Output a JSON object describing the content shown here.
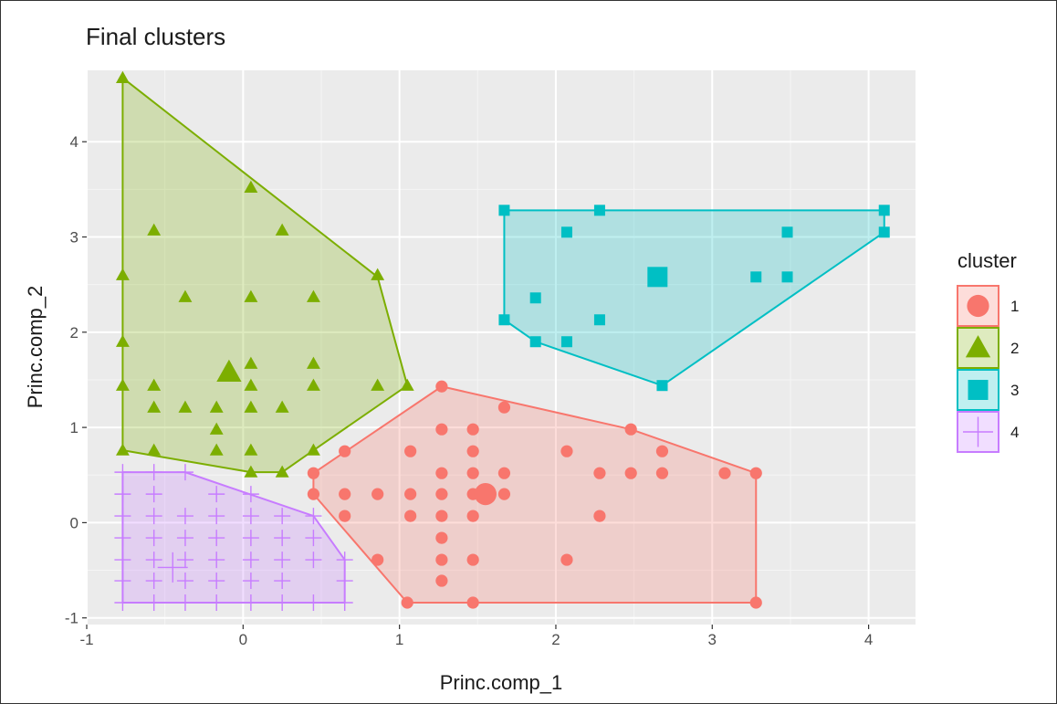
{
  "chart_data": {
    "type": "scatter",
    "title": "Final clusters",
    "xlabel": "Princ.comp_1",
    "ylabel": "Princ.comp_2",
    "xlim": [
      -1,
      4.3
    ],
    "ylim": [
      -1.07,
      4.75
    ],
    "x_ticks": [
      -1,
      0,
      1,
      2,
      3,
      4
    ],
    "y_ticks": [
      -1,
      0,
      1,
      2,
      3,
      4
    ],
    "x_tick_labels": [
      "-1",
      "0",
      "1",
      "2",
      "3",
      "4"
    ],
    "y_tick_labels": [
      "-1",
      "0",
      "1",
      "2",
      "3",
      "4"
    ],
    "grid": true,
    "panel_background": "#ebebeb",
    "legend": {
      "title": "cluster",
      "position": "right"
    },
    "series": [
      {
        "name": "1",
        "shape": "circle",
        "color": "#f8766d",
        "center": [
          1.55,
          0.3
        ],
        "hull": [
          [
            0.45,
            0.52
          ],
          [
            0.45,
            0.3
          ],
          [
            1.05,
            -0.84
          ],
          [
            3.28,
            -0.84
          ],
          [
            3.28,
            0.52
          ],
          [
            2.48,
            0.98
          ],
          [
            1.27,
            1.43
          ]
        ],
        "points": [
          [
            1.27,
            1.43
          ],
          [
            1.67,
            1.21
          ],
          [
            1.27,
            0.98
          ],
          [
            1.47,
            0.98
          ],
          [
            2.48,
            0.98
          ],
          [
            0.65,
            0.75
          ],
          [
            1.07,
            0.75
          ],
          [
            1.47,
            0.75
          ],
          [
            2.07,
            0.75
          ],
          [
            2.68,
            0.75
          ],
          [
            0.45,
            0.52
          ],
          [
            1.27,
            0.52
          ],
          [
            1.47,
            0.52
          ],
          [
            1.67,
            0.52
          ],
          [
            2.28,
            0.52
          ],
          [
            2.48,
            0.52
          ],
          [
            2.68,
            0.52
          ],
          [
            3.08,
            0.52
          ],
          [
            3.28,
            0.52
          ],
          [
            0.45,
            0.3
          ],
          [
            0.65,
            0.3
          ],
          [
            0.86,
            0.3
          ],
          [
            1.07,
            0.3
          ],
          [
            1.27,
            0.3
          ],
          [
            1.47,
            0.3
          ],
          [
            1.67,
            0.3
          ],
          [
            0.65,
            0.07
          ],
          [
            1.07,
            0.07
          ],
          [
            1.27,
            0.07
          ],
          [
            1.47,
            0.07
          ],
          [
            2.28,
            0.07
          ],
          [
            1.27,
            -0.16
          ],
          [
            0.86,
            -0.39
          ],
          [
            1.27,
            -0.39
          ],
          [
            1.47,
            -0.39
          ],
          [
            2.07,
            -0.39
          ],
          [
            1.27,
            -0.61
          ],
          [
            1.05,
            -0.84
          ],
          [
            1.47,
            -0.84
          ],
          [
            3.28,
            -0.84
          ]
        ]
      },
      {
        "name": "2",
        "shape": "triangle",
        "color": "#7cae00",
        "center": [
          -0.09,
          1.58
        ],
        "hull": [
          [
            -0.77,
            4.67
          ],
          [
            0.86,
            2.58
          ],
          [
            1.05,
            1.44
          ],
          [
            0.45,
            0.76
          ],
          [
            0.25,
            0.53
          ],
          [
            0.05,
            0.53
          ],
          [
            -0.77,
            0.76
          ]
        ],
        "points": [
          [
            -0.77,
            4.67
          ],
          [
            0.05,
            3.52
          ],
          [
            -0.57,
            3.07
          ],
          [
            0.25,
            3.07
          ],
          [
            -0.77,
            2.6
          ],
          [
            0.86,
            2.6
          ],
          [
            -0.37,
            2.37
          ],
          [
            0.05,
            2.37
          ],
          [
            0.45,
            2.37
          ],
          [
            -0.77,
            1.9
          ],
          [
            0.05,
            1.67
          ],
          [
            0.45,
            1.67
          ],
          [
            -0.77,
            1.44
          ],
          [
            -0.57,
            1.44
          ],
          [
            0.05,
            1.44
          ],
          [
            0.45,
            1.44
          ],
          [
            0.86,
            1.44
          ],
          [
            1.05,
            1.44
          ],
          [
            -0.57,
            1.21
          ],
          [
            -0.37,
            1.21
          ],
          [
            -0.17,
            1.21
          ],
          [
            0.05,
            1.21
          ],
          [
            0.25,
            1.21
          ],
          [
            -0.17,
            0.98
          ],
          [
            -0.77,
            0.76
          ],
          [
            -0.57,
            0.76
          ],
          [
            -0.17,
            0.76
          ],
          [
            0.05,
            0.76
          ],
          [
            0.45,
            0.76
          ],
          [
            0.05,
            0.53
          ],
          [
            0.25,
            0.53
          ]
        ]
      },
      {
        "name": "3",
        "shape": "square",
        "color": "#00bfc4",
        "center": [
          2.65,
          2.58
        ],
        "hull": [
          [
            1.67,
            3.28
          ],
          [
            4.1,
            3.28
          ],
          [
            4.1,
            3.05
          ],
          [
            2.68,
            1.44
          ],
          [
            1.87,
            1.9
          ],
          [
            1.67,
            2.13
          ]
        ],
        "points": [
          [
            1.67,
            3.28
          ],
          [
            2.28,
            3.28
          ],
          [
            4.1,
            3.28
          ],
          [
            2.07,
            3.05
          ],
          [
            3.48,
            3.05
          ],
          [
            4.1,
            3.05
          ],
          [
            3.28,
            2.58
          ],
          [
            3.48,
            2.58
          ],
          [
            1.87,
            2.36
          ],
          [
            1.67,
            2.13
          ],
          [
            2.28,
            2.13
          ],
          [
            1.87,
            1.9
          ],
          [
            2.07,
            1.9
          ],
          [
            2.68,
            1.44
          ]
        ]
      },
      {
        "name": "4",
        "shape": "cross",
        "color": "#c77cff",
        "center": [
          -0.45,
          -0.47
        ],
        "hull": [
          [
            -0.77,
            0.53
          ],
          [
            -0.37,
            0.53
          ],
          [
            0.45,
            0.07
          ],
          [
            0.65,
            -0.39
          ],
          [
            0.65,
            -0.84
          ],
          [
            -0.77,
            -0.84
          ]
        ],
        "points": [
          [
            -0.77,
            0.53
          ],
          [
            -0.57,
            0.53
          ],
          [
            -0.37,
            0.53
          ],
          [
            -0.77,
            0.3
          ],
          [
            -0.57,
            0.3
          ],
          [
            -0.17,
            0.3
          ],
          [
            0.05,
            0.3
          ],
          [
            -0.77,
            0.07
          ],
          [
            -0.57,
            0.07
          ],
          [
            -0.37,
            0.07
          ],
          [
            -0.17,
            0.07
          ],
          [
            0.05,
            0.07
          ],
          [
            0.25,
            0.07
          ],
          [
            0.45,
            0.07
          ],
          [
            -0.77,
            -0.16
          ],
          [
            -0.57,
            -0.16
          ],
          [
            -0.37,
            -0.16
          ],
          [
            -0.17,
            -0.16
          ],
          [
            0.05,
            -0.16
          ],
          [
            0.25,
            -0.16
          ],
          [
            0.45,
            -0.16
          ],
          [
            -0.77,
            -0.39
          ],
          [
            -0.57,
            -0.39
          ],
          [
            -0.37,
            -0.39
          ],
          [
            -0.17,
            -0.39
          ],
          [
            0.05,
            -0.39
          ],
          [
            0.25,
            -0.39
          ],
          [
            0.45,
            -0.39
          ],
          [
            0.65,
            -0.39
          ],
          [
            -0.77,
            -0.61
          ],
          [
            -0.57,
            -0.61
          ],
          [
            -0.37,
            -0.61
          ],
          [
            -0.17,
            -0.61
          ],
          [
            0.05,
            -0.61
          ],
          [
            0.25,
            -0.61
          ],
          [
            0.65,
            -0.61
          ],
          [
            -0.77,
            -0.84
          ],
          [
            -0.57,
            -0.84
          ],
          [
            -0.37,
            -0.84
          ],
          [
            -0.17,
            -0.84
          ],
          [
            0.05,
            -0.84
          ],
          [
            0.25,
            -0.84
          ],
          [
            0.45,
            -0.84
          ],
          [
            0.65,
            -0.84
          ]
        ]
      }
    ]
  }
}
